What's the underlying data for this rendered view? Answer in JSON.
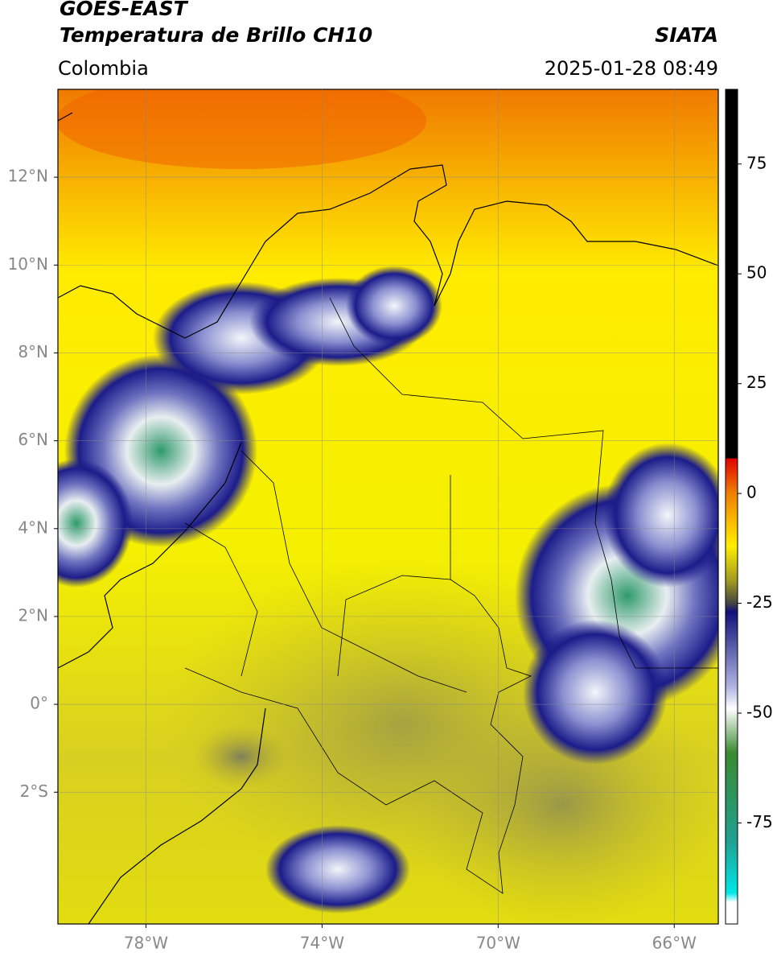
{
  "header": {
    "satellite": "GOES-EAST",
    "product": "Temperatura de Brillo CH10",
    "source": "SIATA",
    "region": "Colombia",
    "datetime": "2025-01-28 08:49"
  },
  "map": {
    "lon_range": [
      -80,
      -65
    ],
    "lat_range": [
      -5,
      14
    ],
    "grid": true,
    "lat_ticks": [
      {
        "value": 12,
        "label": "12°N"
      },
      {
        "value": 10,
        "label": "10°N"
      },
      {
        "value": 8,
        "label": "8°N"
      },
      {
        "value": 6,
        "label": "6°N"
      },
      {
        "value": 4,
        "label": "4°N"
      },
      {
        "value": 2,
        "label": "2°N"
      },
      {
        "value": 0,
        "label": "0°"
      },
      {
        "value": -2,
        "label": "2°S"
      }
    ],
    "lon_ticks": [
      {
        "value": -78,
        "label": "78°W"
      },
      {
        "value": -74,
        "label": "74°W"
      },
      {
        "value": -70,
        "label": "70°W"
      },
      {
        "value": -66,
        "label": "66°W"
      }
    ]
  },
  "colorbar": {
    "range": [
      -98,
      92
    ],
    "ticks": [
      75,
      50,
      25,
      0,
      -25,
      -50,
      -75
    ]
  }
}
